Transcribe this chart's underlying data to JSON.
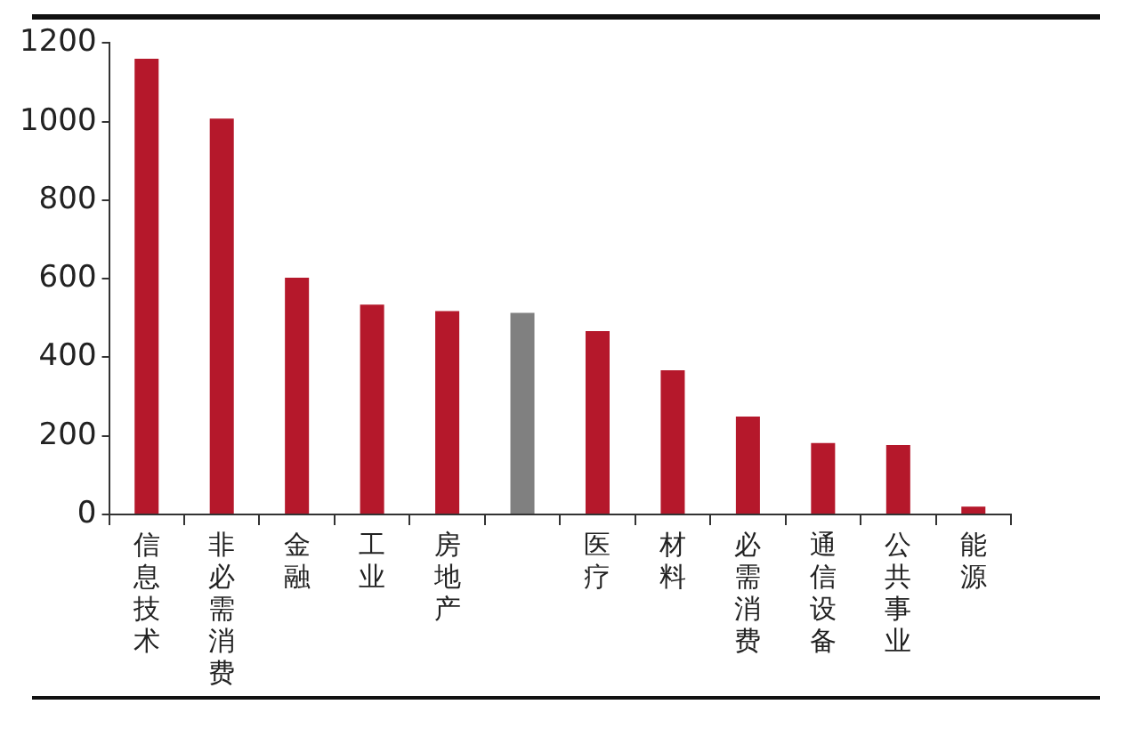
{
  "chart_data": {
    "type": "bar",
    "categories": [
      "信息技术",
      "非必需消费",
      "金融",
      "工业",
      "房地产",
      null,
      "医疗",
      "材料",
      "必需消费",
      "通信设备",
      "公共事业",
      "能源"
    ],
    "values": [
      1160,
      1008,
      603,
      534,
      518,
      513,
      467,
      367,
      249,
      182,
      177,
      20
    ],
    "colors": [
      "#b5182b",
      "#b5182b",
      "#b5182b",
      "#b5182b",
      "#b5182b",
      "#808080",
      "#b5182b",
      "#b5182b",
      "#b5182b",
      "#b5182b",
      "#b5182b",
      "#b5182b"
    ],
    "ylim": [
      0,
      1200
    ],
    "yticks": [
      0,
      200,
      400,
      600,
      800,
      1000,
      1200
    ],
    "grid": false,
    "legend": false
  }
}
